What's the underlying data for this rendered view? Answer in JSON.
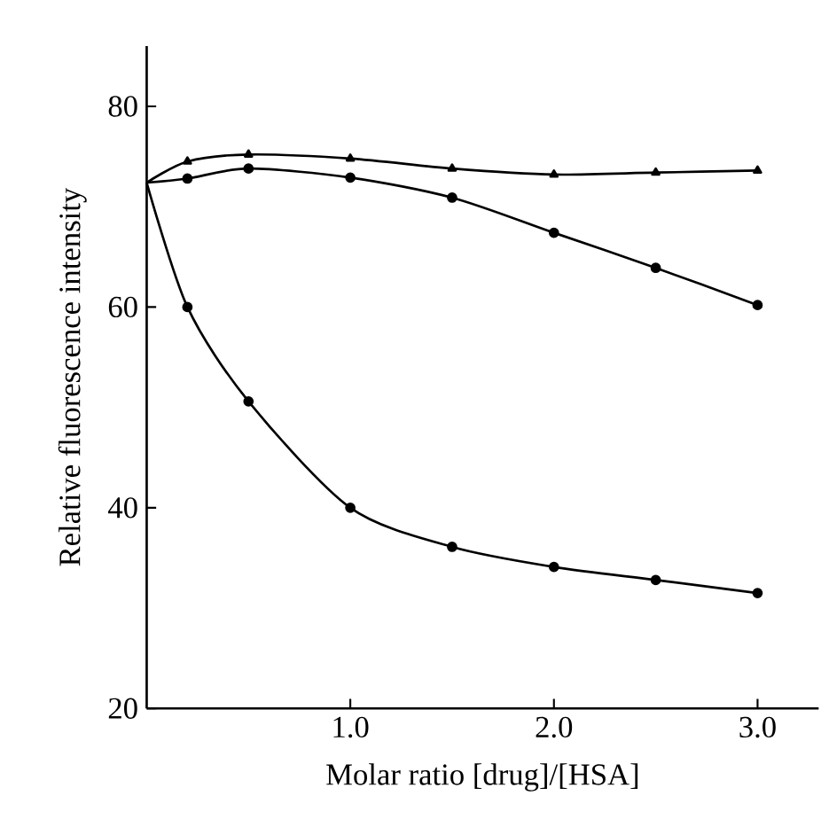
{
  "chart_data": {
    "type": "line",
    "xlabel": "Molar ratio [drug]/[HSA]",
    "ylabel": "Relative fluorescence intensity",
    "xlim": [
      0,
      3.3
    ],
    "ylim": [
      20,
      86
    ],
    "xticks": [
      {
        "value": 1,
        "label": "1.0"
      },
      {
        "value": 2,
        "label": "2.0"
      },
      {
        "value": 3,
        "label": "3.0"
      }
    ],
    "yticks": [
      20,
      40,
      60,
      80
    ],
    "series": [
      {
        "x": [
          0,
          0.2,
          0.5,
          1.0,
          1.5,
          2.0,
          2.5,
          3.0
        ],
        "values": [
          72.4,
          74.5,
          75.2,
          74.8,
          73.8,
          73.2,
          73.4,
          73.6
        ],
        "color": "#000000",
        "marker": "triangle"
      },
      {
        "x": [
          0,
          0.2,
          0.5,
          1.0,
          1.5,
          2.0,
          2.5,
          3.0
        ],
        "values": [
          72.4,
          72.8,
          73.8,
          72.9,
          70.9,
          67.4,
          63.9,
          60.2
        ],
        "color": "#000000",
        "marker": "circle"
      },
      {
        "x": [
          0,
          0.2,
          0.5,
          1.0,
          1.5,
          2.0,
          2.5,
          3.0
        ],
        "values": [
          72.4,
          60.0,
          50.6,
          40.0,
          36.1,
          34.1,
          32.8,
          31.5
        ],
        "color": "#000000",
        "marker": "circle"
      }
    ]
  }
}
